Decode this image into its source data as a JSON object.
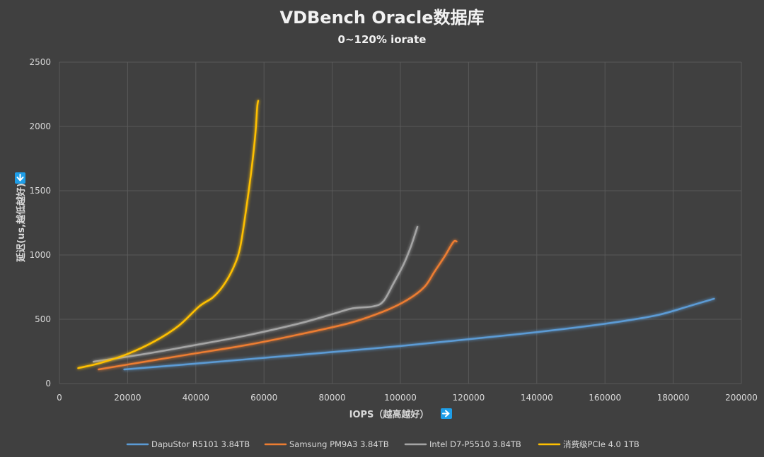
{
  "chart_data": {
    "type": "line",
    "title": "VDBench Oracle数据库",
    "subtitle": "0~120% iorate",
    "xlabel": "IOPS（越高越好）",
    "ylabel": "延迟(us,越低越好)",
    "xlim": [
      0,
      200000
    ],
    "ylim": [
      0,
      2500
    ],
    "x_ticks": [
      "0",
      "20000",
      "40000",
      "60000",
      "80000",
      "100000",
      "120000",
      "140000",
      "160000",
      "180000",
      "200000"
    ],
    "y_ticks": [
      "0",
      "500",
      "1000",
      "1500",
      "2000",
      "2500"
    ],
    "grid": true,
    "legend_position": "bottom",
    "x_arrow_icon": "arrow-right-icon",
    "y_arrow_icon": "arrow-down-icon",
    "arrow_color": "#1e9ee8",
    "series": [
      {
        "name": "DapuStor R5101 3.84TB",
        "color": "#5b9bd5",
        "points": [
          [
            19000,
            110
          ],
          [
            40000,
            155
          ],
          [
            60000,
            200
          ],
          [
            80000,
            245
          ],
          [
            100000,
            292
          ],
          [
            120000,
            345
          ],
          [
            140000,
            400
          ],
          [
            160000,
            465
          ],
          [
            175000,
            530
          ],
          [
            185000,
            605
          ],
          [
            192000,
            660
          ]
        ]
      },
      {
        "name": "Samsung PM9A3 3.84TB",
        "color": "#ed7d31",
        "points": [
          [
            11500,
            110
          ],
          [
            25000,
            170
          ],
          [
            40000,
            235
          ],
          [
            55000,
            300
          ],
          [
            70000,
            380
          ],
          [
            85000,
            470
          ],
          [
            95000,
            560
          ],
          [
            102000,
            650
          ],
          [
            107000,
            750
          ],
          [
            110000,
            870
          ],
          [
            113000,
            990
          ],
          [
            115500,
            1100
          ],
          [
            116500,
            1105
          ]
        ]
      },
      {
        "name": "Intel D7-P5510 3.84TB",
        "color": "#a5a5a5",
        "points": [
          [
            10000,
            170
          ],
          [
            25000,
            230
          ],
          [
            40000,
            300
          ],
          [
            55000,
            375
          ],
          [
            70000,
            465
          ],
          [
            80000,
            540
          ],
          [
            86000,
            585
          ],
          [
            92000,
            600
          ],
          [
            95000,
            640
          ],
          [
            98000,
            780
          ],
          [
            101000,
            930
          ],
          [
            103000,
            1060
          ],
          [
            105000,
            1220
          ]
        ]
      },
      {
        "name": "消费级PCIe 4.0 1TB",
        "color": "#ffc000",
        "points": [
          [
            5500,
            120
          ],
          [
            12000,
            160
          ],
          [
            20000,
            230
          ],
          [
            28000,
            330
          ],
          [
            35000,
            450
          ],
          [
            41000,
            600
          ],
          [
            45000,
            670
          ],
          [
            48000,
            760
          ],
          [
            51000,
            900
          ],
          [
            53000,
            1060
          ],
          [
            55000,
            1400
          ],
          [
            56500,
            1700
          ],
          [
            57500,
            1950
          ],
          [
            58000,
            2150
          ],
          [
            58300,
            2200
          ]
        ]
      }
    ]
  }
}
